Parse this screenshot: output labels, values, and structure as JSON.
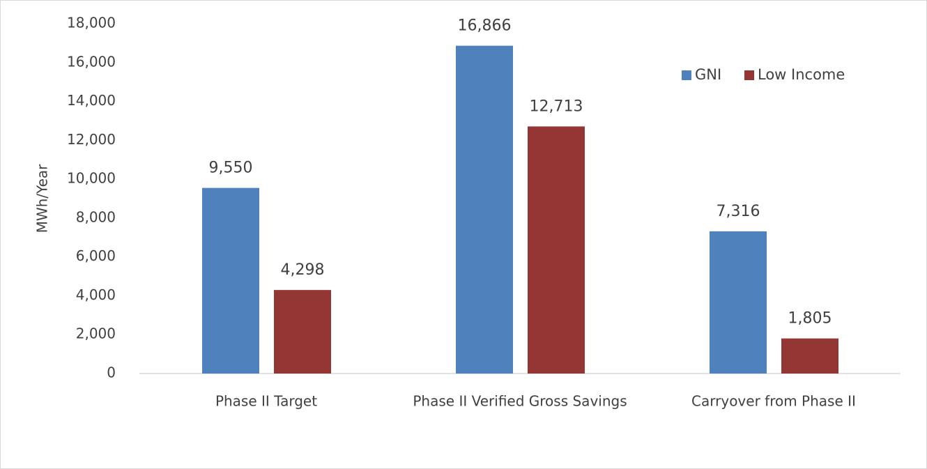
{
  "chart_data": {
    "type": "bar",
    "y_axis_label": "MWh/Year",
    "categories": [
      "Phase II Target",
      "Phase II Verified Gross Savings",
      "Carryover from Phase II"
    ],
    "series": [
      {
        "name": "GNI",
        "color": "#4f81bd",
        "values": [
          9550,
          16866,
          7316
        ],
        "value_labels": [
          "9,550",
          "16,866",
          "7,316"
        ]
      },
      {
        "name": "Low Income",
        "color": "#943634",
        "values": [
          4298,
          12713,
          1805
        ],
        "value_labels": [
          "4,298",
          "12,713",
          "1,805"
        ]
      }
    ],
    "ylim": [
      0,
      18000
    ],
    "yticks": [
      0,
      {
        "value": 2000,
        "label": "2,000"
      },
      {
        "value": 4000,
        "label": "4,000"
      },
      {
        "value": 6000,
        "label": "6,000"
      },
      {
        "value": 8000,
        "label": "8,000"
      },
      {
        "value": 10000,
        "label": "10,000"
      },
      {
        "value": 12000,
        "label": "12,000"
      },
      {
        "value": 14000,
        "label": "14,000"
      },
      {
        "value": 16000,
        "label": "16,000"
      },
      {
        "value": 18000,
        "label": "18,000"
      }
    ],
    "grid": false,
    "legend": "upper right"
  }
}
